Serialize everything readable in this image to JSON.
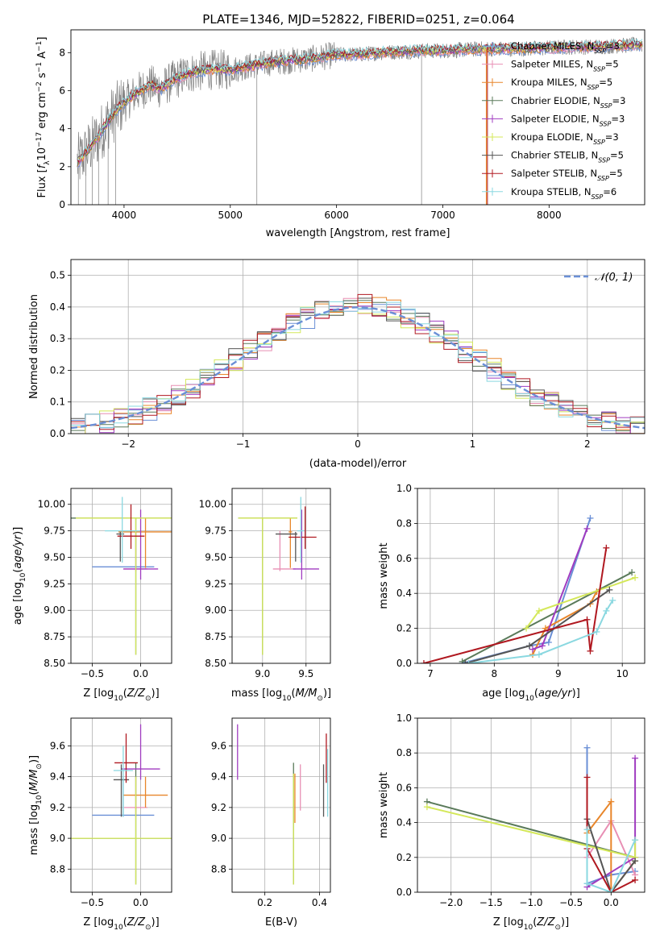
{
  "figure": {
    "title": "PLATE=1346, MJD=52822, FIBERID=0251, z=0.064"
  },
  "models": [
    {
      "name": "Chabrier MILES",
      "nssp": "3",
      "color": "#6a8fd6"
    },
    {
      "name": "Salpeter MILES",
      "nssp": "5",
      "color": "#e88fb4"
    },
    {
      "name": "Kroupa MILES",
      "nssp": "5",
      "color": "#e8862a"
    },
    {
      "name": "Chabrier ELODIE",
      "nssp": "3",
      "color": "#5a7a5a"
    },
    {
      "name": "Salpeter ELODIE",
      "nssp": "3",
      "color": "#a03cc0"
    },
    {
      "name": "Kroupa ELODIE",
      "nssp": "3",
      "color": "#d4e85a"
    },
    {
      "name": "Chabrier STELIB",
      "nssp": "5",
      "color": "#555555"
    },
    {
      "name": "Salpeter STELIB",
      "nssp": "5",
      "color": "#b01820"
    },
    {
      "name": "Kroupa STELIB",
      "nssp": "6",
      "color": "#8ad8e0"
    }
  ],
  "chart_data": [
    {
      "id": "spectrum",
      "type": "line",
      "title": "PLATE=1346, MJD=52822, FIBERID=0251, z=0.064",
      "xlabel": "wavelength [Angstrom, rest frame]",
      "ylabel": "Flux [f_λ 10^-17 erg cm^-2 s^-1 A^-1]",
      "xlim": [
        3500,
        8900
      ],
      "ylim": [
        0,
        9.2
      ],
      "xticks": [
        4000,
        5000,
        6000,
        7000,
        8000
      ],
      "yticks": [
        0,
        2,
        4,
        6,
        8
      ],
      "x": [
        3560,
        3650,
        3750,
        3850,
        3950,
        4050,
        4150,
        4250,
        4350,
        4450,
        4600,
        4800,
        5000,
        5200,
        5400,
        5600,
        5800,
        6000,
        6200,
        6400,
        6600,
        6800,
        7000,
        7200,
        7400,
        7600,
        7800,
        8000,
        8200,
        8400,
        8600,
        8800
      ],
      "y": [
        2.2,
        2.8,
        3.5,
        4.4,
        5.1,
        5.6,
        6.0,
        6.3,
        6.1,
        6.5,
        6.9,
        7.1,
        7.1,
        7.3,
        7.5,
        7.6,
        7.7,
        7.9,
        7.9,
        8.0,
        8.05,
        8.1,
        8.1,
        8.15,
        8.2,
        8.2,
        8.2,
        8.25,
        8.3,
        8.3,
        8.35,
        8.4
      ],
      "legend_position": "top-right",
      "grid": false
    },
    {
      "id": "residuals",
      "type": "histogram",
      "xlabel": "(data-model)/error",
      "ylabel": "Normed distribution",
      "xlim": [
        -2.5,
        2.5
      ],
      "ylim": [
        0,
        0.55
      ],
      "xticks": [
        -2,
        -1,
        0,
        1,
        2
      ],
      "yticks": [
        0.0,
        0.1,
        0.2,
        0.3,
        0.4,
        0.5
      ],
      "bin_width": 0.125,
      "reference_curve": "N(0,1)",
      "legend_position": "top-right",
      "grid": true
    },
    {
      "id": "age_vs_Z",
      "type": "errorbar",
      "xlabel": "Z [log10(Z/Z⊙)]",
      "ylabel": "age [log10(age/yr)]",
      "xlim": [
        -0.72,
        0.32
      ],
      "ylim": [
        8.5,
        10.15
      ],
      "xticks": [
        -0.5,
        0.0
      ],
      "yticks": [
        8.5,
        8.75,
        9.0,
        9.25,
        9.5,
        9.75,
        10.0
      ],
      "points": [
        {
          "x": -0.18,
          "y": 9.41,
          "xerr": 0.32,
          "yerr": 0.0,
          "ylo": 9.41,
          "yhi": 9.41
        },
        {
          "x": -0.05,
          "y": 9.39,
          "xerr": 0.12,
          "ylo": 9.37,
          "yhi": 9.75
        },
        {
          "x": 0.05,
          "y": 9.74,
          "xerr": 0.28,
          "ylo": 9.4,
          "yhi": 9.87
        },
        {
          "x": -0.05,
          "y": 9.87,
          "xerr": 0.68,
          "ylo": 8.58,
          "yhi": 9.87
        },
        {
          "x": 0.0,
          "y": 9.39,
          "xerr": 0.18,
          "ylo": 9.29,
          "yhi": 9.95
        },
        {
          "x": -0.05,
          "y": 9.87,
          "xerr": 0.62,
          "ylo": 8.58,
          "yhi": 9.87
        },
        {
          "x": -0.21,
          "y": 9.72,
          "xerr": 0.04,
          "ylo": 9.46,
          "yhi": 9.74
        },
        {
          "x": -0.1,
          "y": 9.7,
          "xerr": 0.14,
          "ylo": 9.58,
          "yhi": 10.0
        },
        {
          "x": -0.19,
          "y": 9.75,
          "xerr": 0.18,
          "ylo": 9.45,
          "yhi": 10.07
        }
      ]
    },
    {
      "id": "age_vs_mass",
      "type": "errorbar",
      "xlabel": "mass [log10(M/M⊙)]",
      "ylabel": "",
      "xlim": [
        8.65,
        9.78
      ],
      "ylim": [
        8.5,
        10.15
      ],
      "xticks": [
        9.0,
        9.5
      ],
      "yticks": [
        8.5,
        8.75,
        9.0,
        9.25,
        9.5,
        9.75,
        10.0
      ],
      "points": [
        {
          "x": 9.15,
          "y": 9.41,
          "ylo": 9.41,
          "yhi": 9.41,
          "xlo": 9.15,
          "xhi": 9.15
        },
        {
          "x": 9.2,
          "y": 9.39,
          "xlo": 9.12,
          "xhi": 9.38,
          "ylo": 9.37,
          "yhi": 9.75
        },
        {
          "x": 9.32,
          "y": 9.74,
          "xlo": 9.3,
          "xhi": 9.34,
          "ylo": 9.4,
          "yhi": 9.87
        },
        {
          "x": 9.0,
          "y": 9.87,
          "xlo": 8.72,
          "xhi": 9.4,
          "ylo": 8.58,
          "yhi": 9.87
        },
        {
          "x": 9.45,
          "y": 9.39,
          "xlo": 9.35,
          "xhi": 9.65,
          "ylo": 9.29,
          "yhi": 9.95
        },
        {
          "x": 9.0,
          "y": 9.87,
          "xlo": 8.72,
          "xhi": 9.4,
          "ylo": 8.58,
          "yhi": 9.87
        },
        {
          "x": 9.38,
          "y": 9.72,
          "xlo": 9.15,
          "xhi": 9.4,
          "ylo": 9.46,
          "yhi": 9.74
        },
        {
          "x": 9.49,
          "y": 9.69,
          "xlo": 9.3,
          "xhi": 9.62,
          "ylo": 9.58,
          "yhi": 9.98
        },
        {
          "x": 9.44,
          "y": 9.75,
          "xlo": 9.4,
          "xhi": 9.48,
          "ylo": 9.45,
          "yhi": 10.07
        }
      ]
    },
    {
      "id": "massweight_vs_age",
      "type": "line",
      "xlabel": "age [log10(age/yr)]",
      "ylabel": "mass weight",
      "xlim": [
        6.8,
        10.35
      ],
      "ylim": [
        0,
        1
      ],
      "xticks": [
        7,
        8,
        9,
        10
      ],
      "yticks": [
        0.0,
        0.2,
        0.4,
        0.6,
        0.8,
        1.0
      ],
      "series": [
        {
          "x": [
            7.5,
            8.55,
            8.85,
            9.5
          ],
          "y": [
            0.0,
            0.1,
            0.12,
            0.83
          ]
        },
        {
          "x": 7.6,
          "y": 0
        },
        {
          "x": [
            8.6,
            8.8,
            9.5,
            9.6
          ],
          "y": [
            0.05,
            0.2,
            0.34,
            0.41
          ]
        },
        {
          "x": [
            7.5,
            10.15
          ],
          "y": [
            0.01,
            0.52
          ]
        },
        {
          "x": [
            8.6,
            8.75,
            9.45
          ],
          "y": [
            0.08,
            0.1,
            0.77
          ]
        },
        {
          "x": [
            8.5,
            8.7,
            10.2
          ],
          "y": [
            0.2,
            0.3,
            0.49
          ]
        },
        {
          "x": [
            7.55,
            8.55,
            9.8
          ],
          "y": [
            0.0,
            0.1,
            0.42
          ]
        },
        {
          "x": [
            6.9,
            9.45,
            9.5,
            9.75
          ],
          "y": [
            0.0,
            0.25,
            0.07,
            0.66
          ]
        },
        {
          "x": [
            7.6,
            8.7,
            9.6,
            9.75,
            9.85
          ],
          "y": [
            0.0,
            0.05,
            0.18,
            0.3,
            0.36
          ]
        }
      ]
    },
    {
      "id": "mass_vs_Z",
      "type": "errorbar",
      "xlabel": "Z [log10(Z/Z⊙)]",
      "ylabel": "mass [log10(M/M⊙)]",
      "xlim": [
        -0.72,
        0.32
      ],
      "ylim": [
        8.65,
        9.78
      ],
      "xticks": [
        -0.5,
        0.0
      ],
      "yticks": [
        8.8,
        9.0,
        9.2,
        9.4,
        9.6
      ],
      "points": [
        {
          "x": -0.18,
          "y": 9.15,
          "xerr": 0.32,
          "ylo": 9.14,
          "yhi": 9.4
        },
        {
          "x": -0.05,
          "y": 9.2,
          "xerr": 0.12,
          "ylo": 9.14,
          "yhi": 9.4
        },
        {
          "x": 0.05,
          "y": 9.28,
          "xerr": 0.23,
          "ylo": 9.2,
          "yhi": 9.4
        },
        {
          "x": -0.05,
          "y": 9.0,
          "xerr": 0.68,
          "ylo": 8.7,
          "yhi": 9.49
        },
        {
          "x": 0.0,
          "y": 9.45,
          "xerr": 0.2,
          "ylo": 9.38,
          "yhi": 9.74
        },
        {
          "x": -0.05,
          "y": 9.0,
          "xerr": 0.68,
          "ylo": 8.7,
          "yhi": 9.4
        },
        {
          "x": -0.2,
          "y": 9.38,
          "xerr": 0.08,
          "ylo": 9.14,
          "yhi": 9.48
        },
        {
          "x": -0.15,
          "y": 9.49,
          "xerr": 0.12,
          "ylo": 9.36,
          "yhi": 9.68
        },
        {
          "x": -0.18,
          "y": 9.44,
          "xerr": 0.1,
          "ylo": 9.14,
          "yhi": 9.6
        }
      ]
    },
    {
      "id": "mass_vs_EBV",
      "type": "errorbar",
      "xlabel": "E(B-V)",
      "ylabel": "",
      "xlim": [
        0.08,
        0.44
      ],
      "ylim": [
        8.65,
        9.78
      ],
      "xticks": [
        0.2,
        0.4
      ],
      "yticks": [
        8.8,
        9.0,
        9.2,
        9.4,
        9.6
      ],
      "points": [
        {
          "x": 0.42,
          "y": 9.2,
          "ylo": 9.2,
          "yhi": 9.2
        },
        {
          "x": 0.33,
          "y": 9.2,
          "ylo": 9.18,
          "yhi": 9.48
        },
        {
          "x": 0.31,
          "y": 9.28,
          "ylo": 9.1,
          "yhi": 9.42
        },
        {
          "x": 0.305,
          "y": 9.0,
          "ylo": 8.7,
          "yhi": 9.49
        },
        {
          "x": 0.1,
          "y": 9.45,
          "ylo": 9.38,
          "yhi": 9.74
        },
        {
          "x": 0.305,
          "y": 9.0,
          "ylo": 8.7,
          "yhi": 9.42
        },
        {
          "x": 0.415,
          "y": 9.38,
          "ylo": 9.14,
          "yhi": 9.48
        },
        {
          "x": 0.425,
          "y": 9.49,
          "ylo": 9.36,
          "yhi": 9.68
        },
        {
          "x": 0.43,
          "y": 9.44,
          "ylo": 9.14,
          "yhi": 9.58
        }
      ]
    },
    {
      "id": "massweight_vs_Z",
      "type": "line",
      "xlabel": "Z [log10(Z/Z⊙)]",
      "ylabel": "mass weight",
      "xlim": [
        -2.42,
        0.42
      ],
      "ylim": [
        0,
        1
      ],
      "xticks": [
        -2.0,
        -1.5,
        -1.0,
        -0.5,
        0.0
      ],
      "yticks": [
        0.0,
        0.2,
        0.4,
        0.6,
        0.8,
        1.0
      ],
      "series": [
        {
          "x": [
            -0.3,
            -0.3,
            0.0,
            0.3
          ],
          "y": [
            0.83,
            0.05,
            0.1,
            0.12
          ]
        },
        {
          "x": [
            -0.3,
            0.0,
            0.3
          ],
          "y": [
            0.2,
            0.41,
            0.1
          ]
        },
        {
          "x": [
            -0.3,
            0.0,
            0.0,
            0.3
          ],
          "y": [
            0.34,
            0.52,
            0.0,
            0.18
          ]
        },
        {
          "x": [
            -2.3,
            0.3
          ],
          "y": [
            0.52,
            0.2
          ]
        },
        {
          "x": [
            -0.3,
            0.3,
            0.3
          ],
          "y": [
            0.03,
            0.2,
            0.77
          ]
        },
        {
          "x": [
            -2.3,
            0.3,
            0.3
          ],
          "y": [
            0.49,
            0.2,
            0.3
          ]
        },
        {
          "x": [
            -0.3,
            0.0,
            0.3
          ],
          "y": [
            0.42,
            0.0,
            0.18
          ]
        },
        {
          "x": [
            -0.3,
            -0.3,
            0.0,
            0.3
          ],
          "y": [
            0.66,
            0.25,
            0.0,
            0.07
          ]
        },
        {
          "x": [
            -0.3,
            -0.3,
            0.0,
            0.3
          ],
          "y": [
            0.36,
            0.05,
            0.0,
            0.3
          ]
        }
      ]
    }
  ]
}
